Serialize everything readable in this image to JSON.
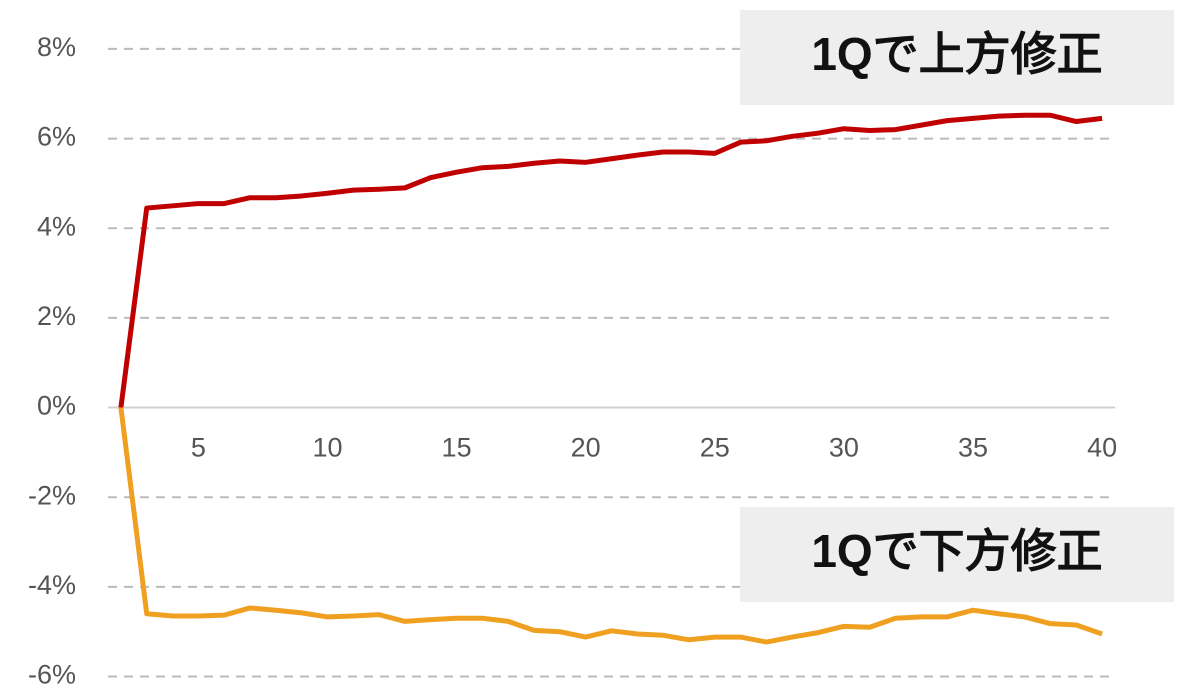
{
  "chart_data": {
    "type": "line",
    "x": [
      2,
      3,
      4,
      5,
      6,
      7,
      8,
      9,
      10,
      11,
      12,
      13,
      14,
      15,
      16,
      17,
      18,
      19,
      20,
      21,
      22,
      23,
      24,
      25,
      26,
      27,
      28,
      29,
      30,
      31,
      32,
      33,
      34,
      35,
      36,
      37,
      38,
      39,
      40
    ],
    "series": [
      {
        "color": "#c00000",
        "values": [
          0,
          4.45,
          4.5,
          4.55,
          4.55,
          4.68,
          4.68,
          4.72,
          4.78,
          4.85,
          4.87,
          4.9,
          5.13,
          5.25,
          5.35,
          5.38,
          5.45,
          5.5,
          5.47,
          5.55,
          5.63,
          5.7,
          5.7,
          5.67,
          5.92,
          5.95,
          6.05,
          6.12,
          6.22,
          6.18,
          6.2,
          6.3,
          6.4,
          6.45,
          6.5,
          6.52,
          6.52,
          6.38,
          6.45
        ]
      },
      {
        "color": "#f0a020",
        "values": [
          0,
          -4.6,
          -4.65,
          -4.65,
          -4.63,
          -4.47,
          -4.52,
          -4.58,
          -4.67,
          -4.65,
          -4.62,
          -4.77,
          -4.73,
          -4.7,
          -4.7,
          -4.77,
          -4.97,
          -5.0,
          -5.12,
          -4.98,
          -5.05,
          -5.08,
          -5.18,
          -5.12,
          -5.12,
          -5.23,
          -5.12,
          -5.02,
          -4.88,
          -4.9,
          -4.7,
          -4.67,
          -4.67,
          -4.52,
          -4.6,
          -4.67,
          -4.82,
          -4.85,
          -5.05
        ]
      }
    ],
    "xlim": [
      1.5,
      40.5
    ],
    "xticks": [
      5,
      10,
      15,
      20,
      25,
      30,
      35,
      40
    ],
    "ylim": [
      -6.3,
      8.6
    ],
    "yticks": [
      {
        "value": -6,
        "label": "-6%"
      },
      {
        "value": -4,
        "label": "-4%"
      },
      {
        "value": -2,
        "label": "-2%"
      },
      {
        "value": 0,
        "label": "0%"
      },
      {
        "value": 2,
        "label": "2%"
      },
      {
        "value": 4,
        "label": "4%"
      },
      {
        "value": 6,
        "label": "6%"
      },
      {
        "value": 8,
        "label": "8%"
      }
    ],
    "grid": true,
    "annotations": [
      "1Qで上方修正",
      "1Qで下方修正"
    ]
  }
}
